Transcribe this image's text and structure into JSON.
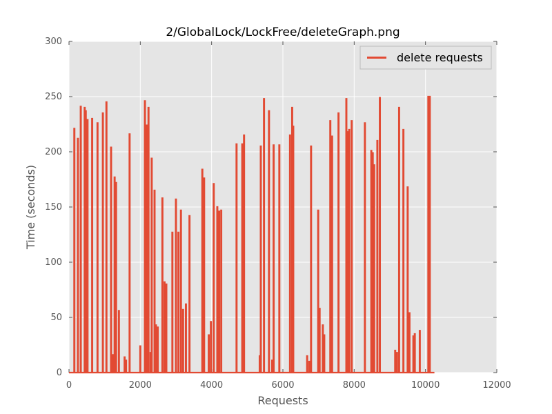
{
  "chart_data": {
    "type": "line",
    "title": "2/GlobalLock/LockFree/deleteGraph.png",
    "xlabel": "Requests",
    "ylabel": "Time (seconds)",
    "xlim": [
      0,
      12000
    ],
    "ylim": [
      0,
      300
    ],
    "xticks": [
      "0",
      "2000",
      "4000",
      "6000",
      "8000",
      "10000",
      "12000"
    ],
    "yticks": [
      "0",
      "50",
      "100",
      "150",
      "200",
      "250",
      "300"
    ],
    "grid": true,
    "legend_position": "top-right",
    "colors": {
      "series": "#E24A33",
      "plot_bg": "#E5E5E5",
      "grid": "#FFFFFF",
      "axis_text": "#555555"
    },
    "series": [
      {
        "name": "delete requests",
        "x_end": 10250,
        "spikes": [
          [
            150,
            221
          ],
          [
            250,
            212
          ],
          [
            330,
            241
          ],
          [
            440,
            240
          ],
          [
            470,
            237
          ],
          [
            520,
            229
          ],
          [
            650,
            230
          ],
          [
            800,
            226
          ],
          [
            950,
            235
          ],
          [
            1050,
            245
          ],
          [
            1180,
            204
          ],
          [
            1230,
            16
          ],
          [
            1280,
            177
          ],
          [
            1320,
            172
          ],
          [
            1400,
            56
          ],
          [
            1560,
            14
          ],
          [
            1600,
            11
          ],
          [
            1700,
            216
          ],
          [
            2000,
            24
          ],
          [
            2130,
            246
          ],
          [
            2180,
            224
          ],
          [
            2230,
            240
          ],
          [
            2290,
            18
          ],
          [
            2320,
            194
          ],
          [
            2400,
            165
          ],
          [
            2440,
            43
          ],
          [
            2490,
            41
          ],
          [
            2620,
            158
          ],
          [
            2680,
            82
          ],
          [
            2730,
            80
          ],
          [
            2900,
            127
          ],
          [
            3000,
            157
          ],
          [
            3070,
            127
          ],
          [
            3140,
            147
          ],
          [
            3200,
            57
          ],
          [
            3280,
            62
          ],
          [
            3380,
            142
          ],
          [
            3740,
            184
          ],
          [
            3790,
            176
          ],
          [
            3920,
            34
          ],
          [
            3980,
            46
          ],
          [
            4060,
            171
          ],
          [
            4160,
            150
          ],
          [
            4210,
            146
          ],
          [
            4270,
            147
          ],
          [
            4700,
            207
          ],
          [
            4860,
            207
          ],
          [
            4910,
            215
          ],
          [
            5350,
            15
          ],
          [
            5380,
            205
          ],
          [
            5470,
            248
          ],
          [
            5610,
            237
          ],
          [
            5700,
            11
          ],
          [
            5740,
            206
          ],
          [
            5900,
            206
          ],
          [
            6200,
            215
          ],
          [
            6260,
            240
          ],
          [
            6290,
            223
          ],
          [
            6680,
            15
          ],
          [
            6740,
            10
          ],
          [
            6790,
            205
          ],
          [
            6990,
            147
          ],
          [
            7030,
            58
          ],
          [
            7120,
            43
          ],
          [
            7160,
            34
          ],
          [
            7330,
            228
          ],
          [
            7380,
            214
          ],
          [
            7560,
            235
          ],
          [
            7780,
            248
          ],
          [
            7830,
            218
          ],
          [
            7860,
            220
          ],
          [
            7930,
            228
          ],
          [
            8300,
            226
          ],
          [
            8480,
            201
          ],
          [
            8520,
            199
          ],
          [
            8560,
            188
          ],
          [
            8650,
            210
          ],
          [
            8720,
            249
          ],
          [
            9150,
            20
          ],
          [
            9200,
            18
          ],
          [
            9260,
            240
          ],
          [
            9380,
            220
          ],
          [
            9500,
            168
          ],
          [
            9550,
            54
          ],
          [
            9660,
            33
          ],
          [
            9700,
            35
          ],
          [
            9840,
            38
          ],
          [
            10080,
            250
          ],
          [
            10120,
            250
          ]
        ]
      }
    ]
  }
}
